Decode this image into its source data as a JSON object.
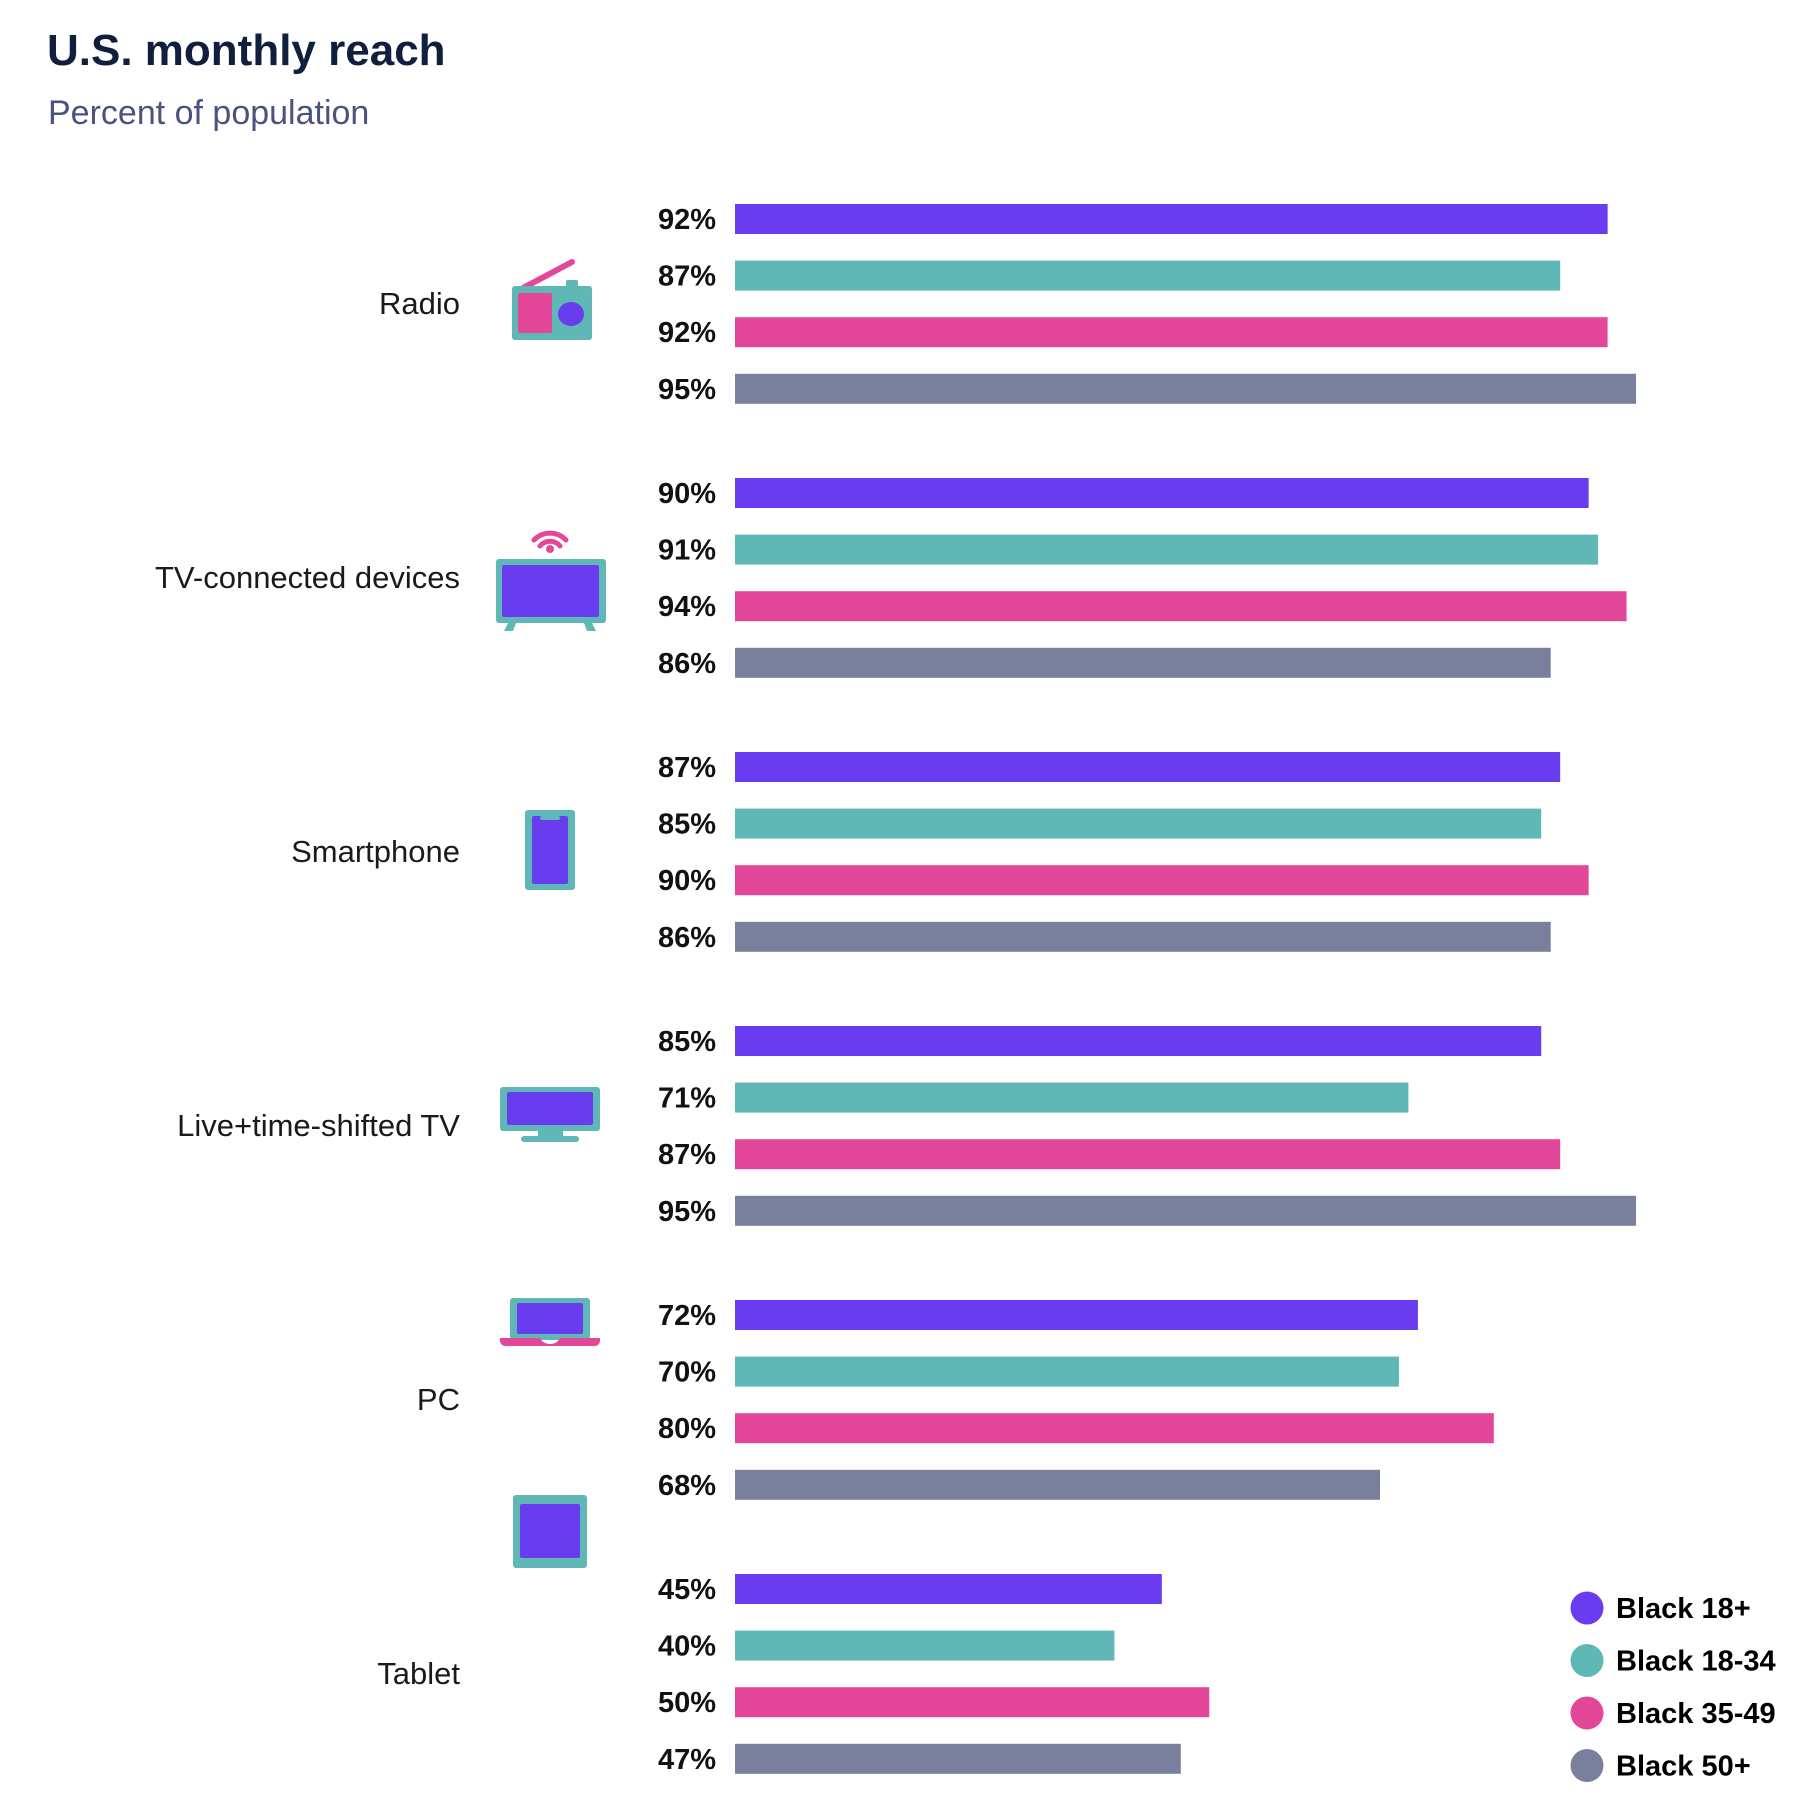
{
  "chart_data": {
    "type": "bar",
    "orientation": "horizontal",
    "title": "U.S. monthly reach",
    "subtitle": "Percent of population",
    "categories": [
      "Radio",
      "TV-connected devices",
      "Smartphone",
      "Live+time-shifted TV",
      "PC",
      "Tablet"
    ],
    "category_icons": [
      "radio-icon",
      "connected-tv-icon",
      "smartphone-icon",
      "monitor-icon",
      "laptop-icon",
      "tablet-icon"
    ],
    "series": [
      {
        "name": "Black 18+",
        "color": "#6a3cf0",
        "values": [
          92,
          90,
          87,
          85,
          72,
          45
        ]
      },
      {
        "name": "Black 18-34",
        "color": "#5fb8b6",
        "values": [
          87,
          91,
          85,
          71,
          70,
          40
        ]
      },
      {
        "name": "Black 35-49",
        "color": "#e3479a",
        "values": [
          92,
          94,
          90,
          87,
          80,
          50
        ]
      },
      {
        "name": "Black 50+",
        "color": "#7b7f9e",
        "values": [
          95,
          86,
          86,
          95,
          68,
          47
        ]
      }
    ],
    "value_format": "percent",
    "xlim": [
      0,
      100
    ],
    "grid": false,
    "axes_visible": false,
    "legend": "bottom-right"
  }
}
